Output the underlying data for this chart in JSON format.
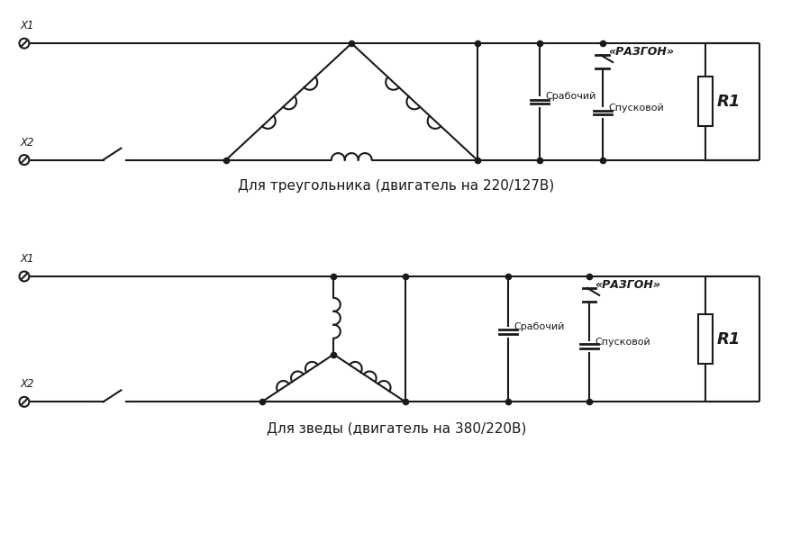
{
  "background_color": "#ffffff",
  "line_color": "#1a1a1a",
  "line_width": 1.5,
  "dot_size": 4.5,
  "title1": "Для треугольника (двигатель на 220/127В)",
  "title2": "Для зведы (двигатель на 380/220В)",
  "label_x1": "X1",
  "label_x2": "X2",
  "label_rabochiy": "Срабочий",
  "label_puskovoy": "Спусковой",
  "label_razgon": "«РАЗГОН»",
  "label_R1": "R1",
  "font_size_title": 11,
  "font_size_label": 8,
  "font_size_r1": 13
}
